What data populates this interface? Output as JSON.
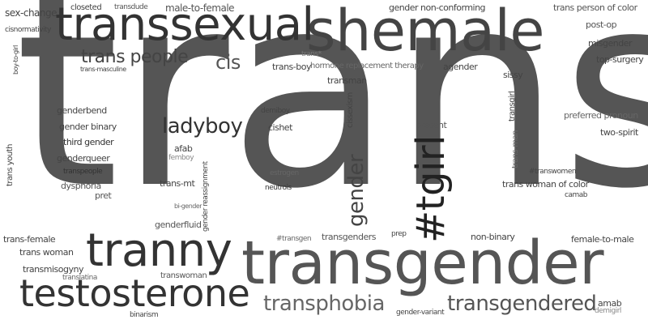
{
  "words": [
    {
      "text": "trans",
      "color": "#555555"
    },
    {
      "text": "transgender",
      "color": "#555555"
    },
    {
      "text": "shemale",
      "color": "#444444"
    },
    {
      "text": "transsexual",
      "color": "#333333"
    },
    {
      "text": "tranny",
      "color": "#333333"
    },
    {
      "text": "testosterone",
      "color": "#333333"
    },
    {
      "text": "#tgirl",
      "color": "#222222"
    },
    {
      "text": "gender",
      "color": "#444444"
    },
    {
      "text": "ladyboy",
      "color": "#333333"
    },
    {
      "text": "trans people",
      "color": "#444444"
    },
    {
      "text": "cis",
      "color": "#555555"
    },
    {
      "text": "transphobia",
      "color": "#666666"
    },
    {
      "text": "transgendered",
      "color": "#555555"
    },
    {
      "text": "sex-change",
      "color": "#444444"
    },
    {
      "text": "closeted",
      "color": "#444444"
    },
    {
      "text": "transdude",
      "color": "#555555"
    },
    {
      "text": "male-to-female",
      "color": "#555555"
    },
    {
      "text": "gender non-conforming",
      "color": "#444444"
    },
    {
      "text": "trans person of color",
      "color": "#555555"
    },
    {
      "text": "cisnormativity",
      "color": "#444444"
    },
    {
      "text": "boy-to-girl",
      "color": "#444444"
    },
    {
      "text": "trans*",
      "color": "#777777"
    },
    {
      "text": "trans-boy",
      "color": "#444444"
    },
    {
      "text": "hormone replacement therapy",
      "color": "#666666"
    },
    {
      "text": "agender",
      "color": "#444444"
    },
    {
      "text": "post-op",
      "color": "#555555"
    },
    {
      "text": "misgender",
      "color": "#444444"
    },
    {
      "text": "top-surgery",
      "color": "#444444"
    },
    {
      "text": "trans-masculine",
      "color": "#444444"
    },
    {
      "text": "sissy",
      "color": "#444444"
    },
    {
      "text": "transman",
      "color": "#444444"
    },
    {
      "text": "genderbend",
      "color": "#444444"
    },
    {
      "text": "demiboy",
      "color": "#444444"
    },
    {
      "text": "cissexism",
      "color": "#444444"
    },
    {
      "text": "transgirl",
      "color": "#444444"
    },
    {
      "text": "preferred pronoun",
      "color": "#666666"
    },
    {
      "text": "gender binary",
      "color": "#444444"
    },
    {
      "text": "cishet",
      "color": "#444444"
    },
    {
      "text": "present",
      "color": "#555555"
    },
    {
      "text": "two-spirit",
      "color": "#444444"
    },
    {
      "text": "third gender",
      "color": "#333333"
    },
    {
      "text": "trans-man",
      "color": "#666666"
    },
    {
      "text": "trans youth",
      "color": "#444444"
    },
    {
      "text": "genderqueer",
      "color": "#444444"
    },
    {
      "text": "afab",
      "color": "#444444"
    },
    {
      "text": "femboy",
      "color": "#888888"
    },
    {
      "text": "gender reassignment",
      "color": "#444444"
    },
    {
      "text": "transpeople",
      "color": "#333333"
    },
    {
      "text": "estrogen",
      "color": "#666666"
    },
    {
      "text": "#transwomen",
      "color": "#444444"
    },
    {
      "text": "dysphoria",
      "color": "#555555"
    },
    {
      "text": "trans-mt",
      "color": "#444444"
    },
    {
      "text": "neutrois",
      "color": "#333333"
    },
    {
      "text": "trans woman of color",
      "color": "#444444"
    },
    {
      "text": "pret",
      "color": "#555555"
    },
    {
      "text": "camab",
      "color": "#444444"
    },
    {
      "text": "bi-gender",
      "color": "#666666"
    },
    {
      "text": "genderfluid",
      "color": "#555555"
    },
    {
      "text": "trans-female",
      "color": "#444444"
    },
    {
      "text": "#transgen",
      "color": "#666666"
    },
    {
      "text": "transgenders",
      "color": "#555555"
    },
    {
      "text": "prep",
      "color": "#444444"
    },
    {
      "text": "non-binary",
      "color": "#444444"
    },
    {
      "text": "female-to-male",
      "color": "#444444"
    },
    {
      "text": "trans woman",
      "color": "#444444"
    },
    {
      "text": "transmisogyny",
      "color": "#444444"
    },
    {
      "text": "translatina",
      "color": "#666666"
    },
    {
      "text": "transwoman",
      "color": "#555555"
    },
    {
      "text": "amab",
      "color": "#444444"
    },
    {
      "text": "demigirl",
      "color": "#888888"
    },
    {
      "text": "binarism",
      "color": "#444444"
    },
    {
      "text": "gender-variant",
      "color": "#444444"
    }
  ]
}
